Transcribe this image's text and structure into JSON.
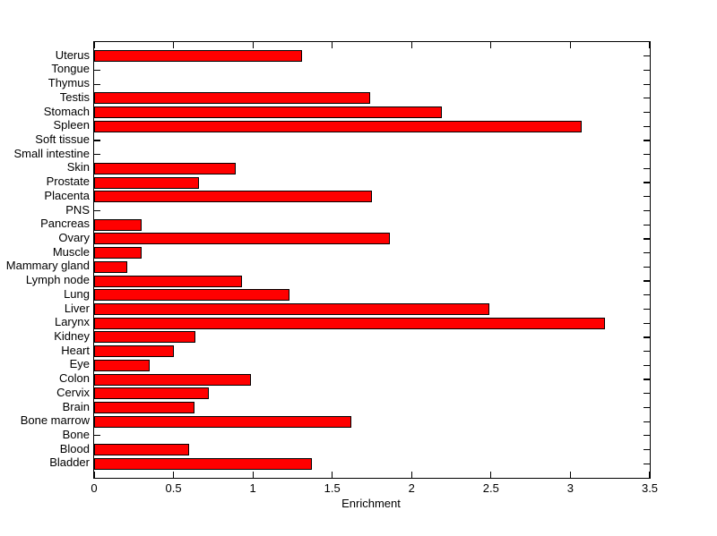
{
  "chart_data": {
    "type": "bar",
    "orientation": "horizontal",
    "title": "",
    "xlabel": "Enrichment",
    "ylabel": "",
    "xlim": [
      0,
      3.5
    ],
    "xtick_values": [
      0,
      0.5,
      1,
      1.5,
      2,
      2.5,
      3,
      3.5
    ],
    "xtick_labels": [
      "0",
      "0.5",
      "1",
      "1.5",
      "2",
      "2.5",
      "3",
      "3.5"
    ],
    "grid": false,
    "legend": "none",
    "bar_color": "#ff0000",
    "bar_edge_color": "#000000",
    "axis_color": "#000000",
    "background_color": "#ffffff",
    "categories": [
      "Uterus",
      "Tongue",
      "Thymus",
      "Testis",
      "Stomach",
      "Spleen",
      "Soft tissue",
      "Small intestine",
      "Skin",
      "Prostate",
      "Placenta",
      "PNS",
      "Pancreas",
      "Ovary",
      "Muscle",
      "Mammary gland",
      "Lymph node",
      "Lung",
      "Liver",
      "Larynx",
      "Kidney",
      "Heart",
      "Eye",
      "Colon",
      "Cervix",
      "Brain",
      "Bone marrow",
      "Bone",
      "Blood",
      "Bladder"
    ],
    "values": [
      1.31,
      0,
      0,
      1.74,
      2.19,
      3.07,
      0,
      0,
      0.89,
      0.66,
      1.75,
      0,
      0.3,
      1.86,
      0.3,
      0.21,
      0.93,
      1.23,
      2.49,
      3.22,
      0.64,
      0.5,
      0.35,
      0.99,
      0.72,
      0.63,
      1.62,
      0,
      0.6,
      1.37
    ]
  }
}
